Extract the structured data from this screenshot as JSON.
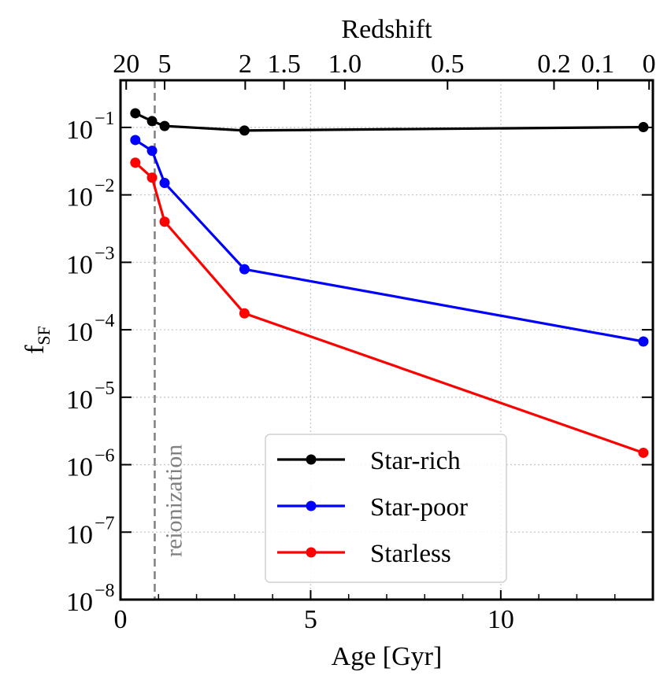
{
  "chart_data": {
    "type": "line",
    "title": "",
    "xlabel": "Age [Gyr]",
    "ylabel": "f",
    "ylabel_subscript": "SF",
    "xlim": [
      0,
      14.0
    ],
    "ylim": [
      1e-08,
      0.5
    ],
    "yscale": "log",
    "grid": true,
    "x_ticks": [
      0,
      5,
      10
    ],
    "x_tick_labels": [
      "0",
      "5",
      "10"
    ],
    "x_minor_ticks": [
      1,
      2,
      3,
      4,
      6,
      7,
      8,
      9,
      11,
      12,
      13
    ],
    "y_ticks": [
      0.1,
      0.01,
      0.001,
      0.0001,
      1e-05,
      1e-06,
      1e-07,
      1e-08
    ],
    "y_tick_labels": [
      {
        "base": "10",
        "exp": "−1"
      },
      {
        "base": "10",
        "exp": "−2"
      },
      {
        "base": "10",
        "exp": "−3"
      },
      {
        "base": "10",
        "exp": "−4"
      },
      {
        "base": "10",
        "exp": "−5"
      },
      {
        "base": "10",
        "exp": "−6"
      },
      {
        "base": "10",
        "exp": "−7"
      },
      {
        "base": "10",
        "exp": "−8"
      }
    ],
    "top_axis": {
      "label": "Redshift",
      "ticks": [
        {
          "age": 0.15,
          "label": "20"
        },
        {
          "age": 1.16,
          "label": "5"
        },
        {
          "age": 3.28,
          "label": "2"
        },
        {
          "age": 4.3,
          "label": "1.5"
        },
        {
          "age": 5.9,
          "label": "1.0"
        },
        {
          "age": 8.6,
          "label": "0.5"
        },
        {
          "age": 11.4,
          "label": "0.2"
        },
        {
          "age": 12.55,
          "label": "0.1"
        },
        {
          "age": 13.9,
          "label": "0"
        }
      ]
    },
    "x": [
      0.39,
      0.83,
      1.16,
      3.26,
      13.75
    ],
    "series": [
      {
        "name": "Star-rich",
        "color": "#000000",
        "values": [
          0.162,
          0.124,
          0.105,
          0.09,
          0.101
        ]
      },
      {
        "name": "Star-poor",
        "color": "#0000ff",
        "values": [
          0.065,
          0.045,
          0.015,
          0.00079,
          6.7e-05
        ]
      },
      {
        "name": "Starless",
        "color": "#ff0000",
        "values": [
          0.03,
          0.018,
          0.004,
          0.000175,
          1.5e-06
        ]
      }
    ],
    "annotations": [
      {
        "type": "vline",
        "x": 0.9,
        "style": "dashed",
        "color": "#808080",
        "label": "reionization"
      }
    ],
    "legend_position": "lower-center"
  }
}
